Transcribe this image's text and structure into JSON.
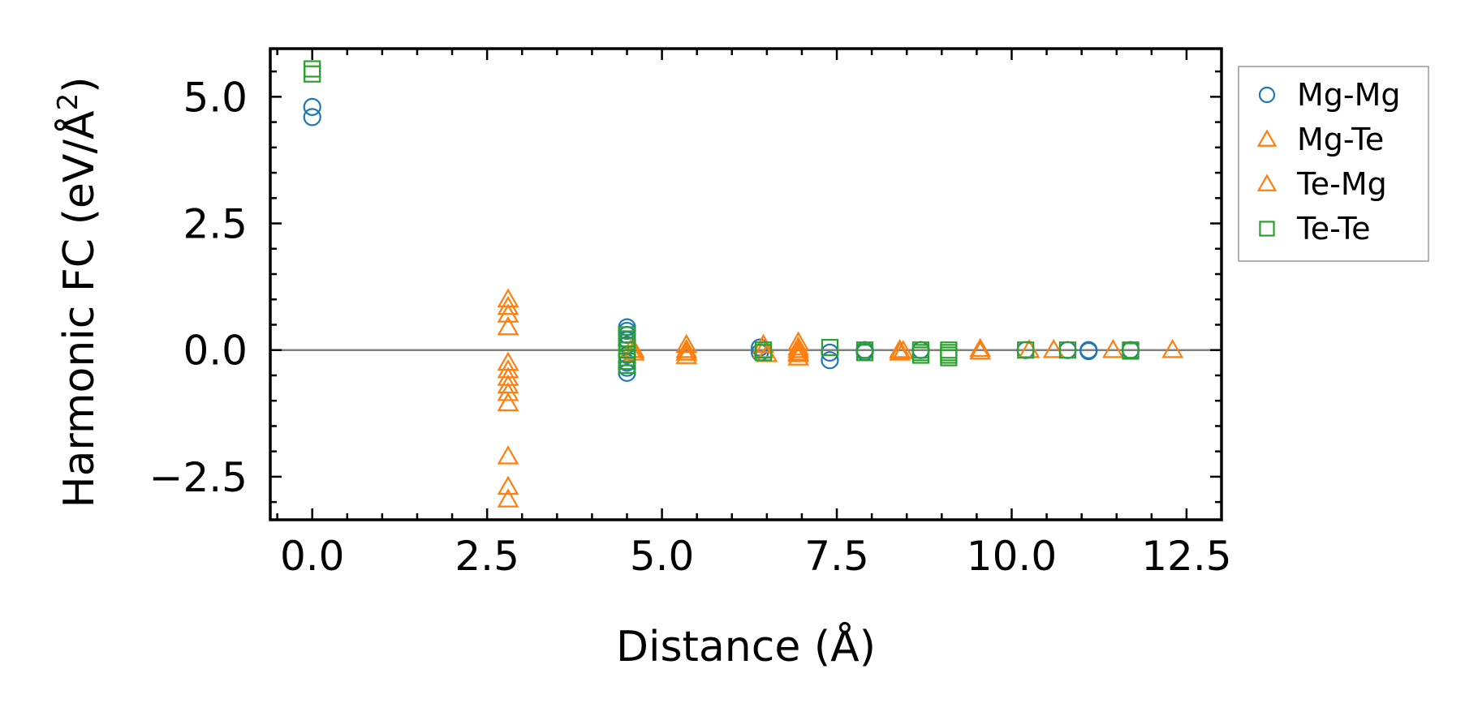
{
  "chart_data": {
    "type": "scatter",
    "xlabel": "Distance (Å)",
    "ylabel_main": "Harmonic FC (eV/Å",
    "ylabel_sup": "2",
    "ylabel_close": ")",
    "xlim": [
      -0.6,
      13.0
    ],
    "ylim": [
      -3.35,
      5.95
    ],
    "xticks": [
      0.0,
      2.5,
      5.0,
      7.5,
      10.0,
      12.5
    ],
    "xtick_labels": [
      "0.0",
      "2.5",
      "5.0",
      "7.5",
      "10.0",
      "12.5"
    ],
    "yticks": [
      -2.5,
      0.0,
      2.5,
      5.0
    ],
    "ytick_labels": [
      "−2.5",
      "0.0",
      "2.5",
      "5.0"
    ],
    "zero_line": true,
    "grid": false,
    "legend_position": "right-outside-top",
    "series": [
      {
        "name": "Mg-Mg",
        "marker": "circle",
        "color": "#1f77b4",
        "points": [
          [
            0.0,
            4.8
          ],
          [
            0.0,
            4.6
          ],
          [
            4.5,
            0.45
          ],
          [
            4.5,
            0.38
          ],
          [
            4.5,
            0.3
          ],
          [
            4.5,
            0.2
          ],
          [
            4.5,
            0.1
          ],
          [
            4.5,
            -0.1
          ],
          [
            4.5,
            -0.25
          ],
          [
            4.5,
            -0.35
          ],
          [
            4.5,
            -0.45
          ],
          [
            6.4,
            0.05
          ],
          [
            6.4,
            -0.05
          ],
          [
            7.4,
            -0.05
          ],
          [
            7.4,
            -0.2
          ],
          [
            7.9,
            0.0
          ],
          [
            7.9,
            -0.04
          ],
          [
            8.7,
            0.0
          ],
          [
            10.2,
            0.0
          ],
          [
            10.8,
            0.0
          ],
          [
            11.1,
            0.0
          ],
          [
            11.1,
            -0.02
          ],
          [
            11.7,
            0.0
          ]
        ]
      },
      {
        "name": "Mg-Te",
        "marker": "triangle",
        "color": "#ff7f0e",
        "points": [
          [
            2.8,
            1.0
          ],
          [
            2.8,
            0.85
          ],
          [
            2.8,
            0.7
          ],
          [
            2.8,
            0.45
          ],
          [
            2.8,
            -0.25
          ],
          [
            2.8,
            -0.4
          ],
          [
            2.8,
            -0.55
          ],
          [
            2.8,
            -0.7
          ],
          [
            2.8,
            -0.85
          ],
          [
            2.8,
            -1.05
          ],
          [
            2.8,
            -2.1
          ],
          [
            2.8,
            -2.7
          ],
          [
            2.8,
            -2.95
          ],
          [
            4.55,
            0.0
          ],
          [
            4.6,
            -0.05
          ],
          [
            5.35,
            0.1
          ],
          [
            5.35,
            0.0
          ],
          [
            5.35,
            -0.05
          ],
          [
            5.35,
            -0.12
          ],
          [
            6.45,
            0.1
          ],
          [
            6.45,
            0.0
          ],
          [
            6.95,
            0.15
          ],
          [
            6.95,
            0.05
          ],
          [
            6.95,
            0.0
          ],
          [
            6.95,
            -0.08
          ],
          [
            6.95,
            -0.15
          ],
          [
            8.4,
            0.0
          ],
          [
            8.4,
            -0.05
          ],
          [
            9.55,
            0.02
          ],
          [
            9.55,
            -0.03
          ],
          [
            10.25,
            0.0
          ],
          [
            10.6,
            0.0
          ],
          [
            11.45,
            0.0
          ],
          [
            12.3,
            0.0
          ]
        ]
      },
      {
        "name": "Te-Mg",
        "marker": "triangle",
        "color": "#ff7f0e",
        "points": [
          [
            4.6,
            0.0
          ],
          [
            5.35,
            -0.05
          ],
          [
            6.5,
            -0.08
          ],
          [
            6.95,
            -0.05
          ],
          [
            8.45,
            -0.02
          ]
        ]
      },
      {
        "name": "Te-Te",
        "marker": "square",
        "color": "#2ca02c",
        "points": [
          [
            0.0,
            5.55
          ],
          [
            0.0,
            5.45
          ],
          [
            4.5,
            0.3
          ],
          [
            4.5,
            0.22
          ],
          [
            4.5,
            0.15
          ],
          [
            4.5,
            0.08
          ],
          [
            4.5,
            0.0
          ],
          [
            4.5,
            -0.08
          ],
          [
            4.5,
            -0.15
          ],
          [
            4.5,
            -0.22
          ],
          [
            4.5,
            -0.3
          ],
          [
            6.45,
            0.0
          ],
          [
            6.45,
            -0.05
          ],
          [
            7.4,
            0.05
          ],
          [
            7.9,
            0.0
          ],
          [
            7.9,
            -0.05
          ],
          [
            8.7,
            0.0
          ],
          [
            8.7,
            -0.05
          ],
          [
            8.7,
            -0.1
          ],
          [
            9.1,
            0.0
          ],
          [
            9.1,
            -0.05
          ],
          [
            9.1,
            -0.1
          ],
          [
            9.1,
            -0.15
          ],
          [
            10.2,
            0.0
          ],
          [
            10.8,
            0.0
          ],
          [
            11.7,
            0.0
          ],
          [
            11.7,
            -0.02
          ]
        ]
      }
    ]
  }
}
